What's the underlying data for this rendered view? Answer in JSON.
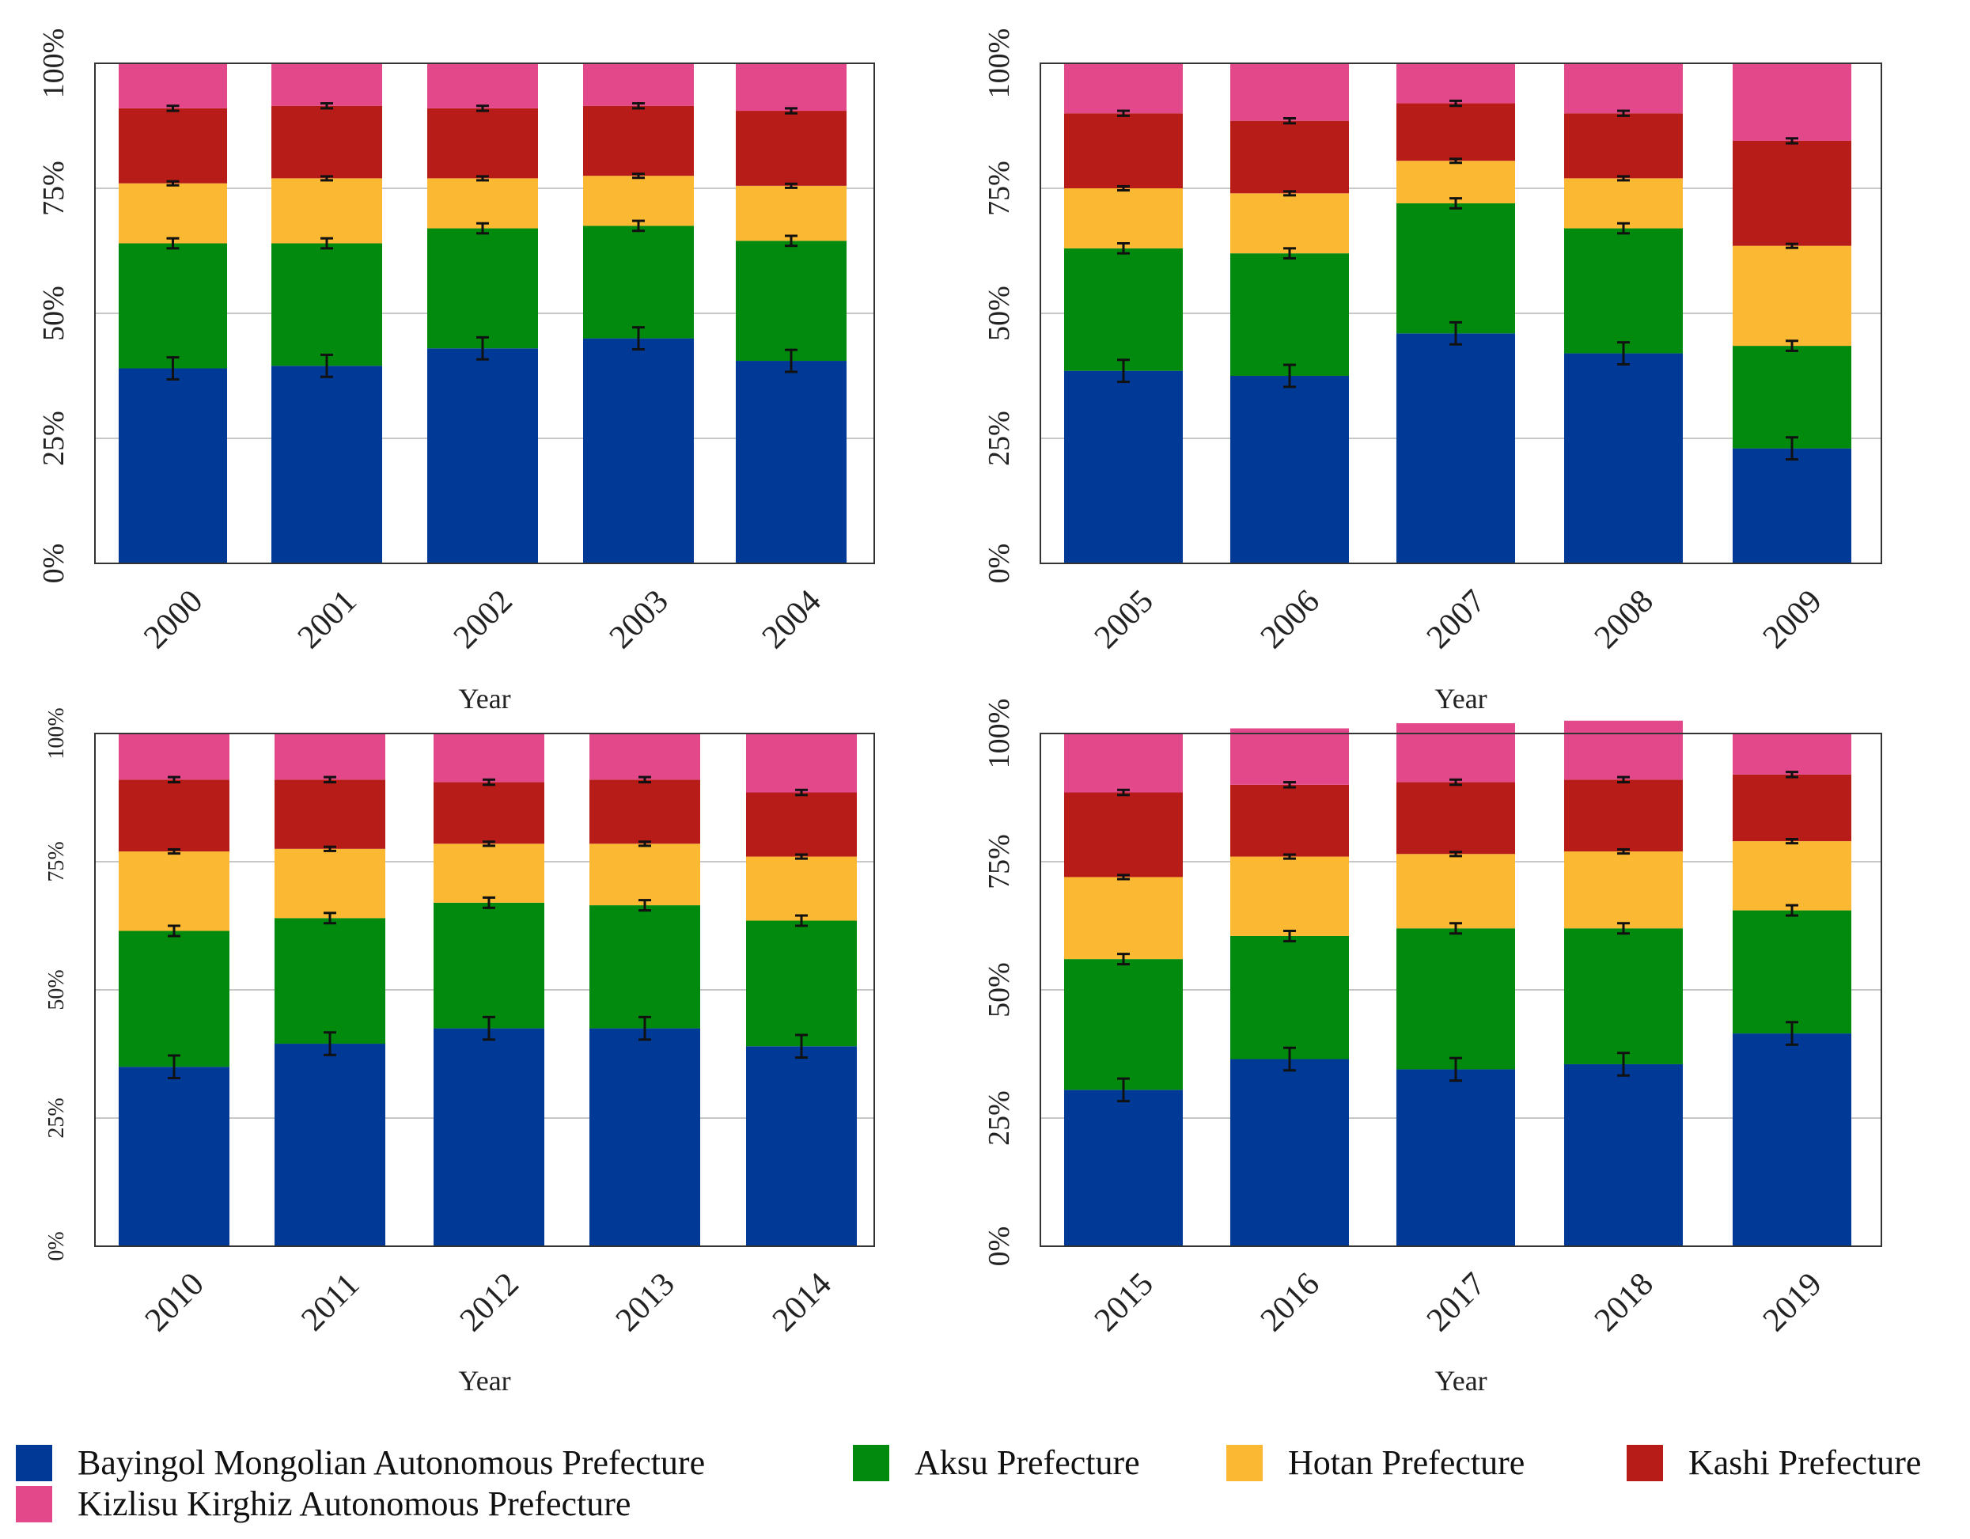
{
  "colors": {
    "Bayingol Mongolian Autonomous Prefecture": "#003a96",
    "Aksu Prefecture": "#028a0f",
    "Hotan Prefecture": "#fbb833",
    "Kashi Prefecture": "#b81c19",
    "Kizlisu Kirghiz Autonomous Prefecture": "#e2488a"
  },
  "legend": [
    "Bayingol Mongolian Autonomous Prefecture",
    "Aksu Prefecture",
    "Hotan Prefecture",
    "Kashi Prefecture",
    "Kizlisu Kirghiz Autonomous Prefecture"
  ],
  "chart_data": [
    {
      "type": "bar",
      "stacked": true,
      "xlabel": "Year",
      "ylabel": "",
      "ylim": [
        0,
        100
      ],
      "yticks": [
        "0%",
        "25%",
        "50%",
        "75%",
        "100%"
      ],
      "categories": [
        "2000",
        "2001",
        "2002",
        "2003",
        "2004"
      ],
      "series": [
        {
          "name": "Bayingol Mongolian Autonomous Prefecture",
          "values": [
            39,
            39.5,
            43,
            45,
            40.5
          ]
        },
        {
          "name": "Aksu Prefecture",
          "values": [
            25,
            24.5,
            24,
            22.5,
            24
          ]
        },
        {
          "name": "Hotan Prefecture",
          "values": [
            12,
            13,
            10,
            10,
            11
          ]
        },
        {
          "name": "Kashi Prefecture",
          "values": [
            15,
            14.5,
            14,
            14,
            15
          ]
        },
        {
          "name": "Kizlisu Kirghiz Autonomous Prefecture",
          "values": [
            9,
            8.5,
            9,
            8.5,
            9.5
          ]
        }
      ]
    },
    {
      "type": "bar",
      "stacked": true,
      "xlabel": "Year",
      "ylabel": "",
      "ylim": [
        0,
        100
      ],
      "yticks": [
        "0%",
        "25%",
        "50%",
        "75%",
        "100%"
      ],
      "categories": [
        "2005",
        "2006",
        "2007",
        "2008",
        "2009"
      ],
      "series": [
        {
          "name": "Bayingol Mongolian Autonomous Prefecture",
          "values": [
            38.5,
            37.5,
            46,
            42,
            23
          ]
        },
        {
          "name": "Aksu Prefecture",
          "values": [
            24.5,
            24.5,
            26,
            25,
            20.5
          ]
        },
        {
          "name": "Hotan Prefecture",
          "values": [
            12,
            12,
            8.5,
            10,
            20
          ]
        },
        {
          "name": "Kashi Prefecture",
          "values": [
            15,
            14.5,
            11.5,
            13,
            21
          ]
        },
        {
          "name": "Kizlisu Kirghiz Autonomous Prefecture",
          "values": [
            10,
            11.5,
            8,
            10,
            15.5
          ]
        }
      ]
    },
    {
      "type": "bar",
      "stacked": true,
      "xlabel": "Year",
      "ylabel": "",
      "ylim": [
        0,
        100
      ],
      "yticks": [
        "0%",
        "25%",
        "50%",
        "75%",
        "100%"
      ],
      "categories": [
        "2010",
        "2011",
        "2012",
        "2013",
        "2014"
      ],
      "series": [
        {
          "name": "Bayingol Mongolian Autonomous Prefecture",
          "values": [
            35,
            39.5,
            42.5,
            42.5,
            39
          ]
        },
        {
          "name": "Aksu Prefecture",
          "values": [
            26.5,
            24.5,
            24.5,
            24,
            24.5
          ]
        },
        {
          "name": "Hotan Prefecture",
          "values": [
            15.5,
            13.5,
            11.5,
            12,
            12.5
          ]
        },
        {
          "name": "Kashi Prefecture",
          "values": [
            14,
            13.5,
            12,
            12.5,
            12.5
          ]
        },
        {
          "name": "Kizlisu Kirghiz Autonomous Prefecture",
          "values": [
            9,
            9,
            9.5,
            9,
            11.5
          ]
        }
      ]
    },
    {
      "type": "bar",
      "stacked": true,
      "xlabel": "Year",
      "ylabel": "",
      "ylim": [
        0,
        100
      ],
      "yticks": [
        "0%",
        "25%",
        "50%",
        "75%",
        "100%"
      ],
      "categories": [
        "2015",
        "2016",
        "2017",
        "2018",
        "2019"
      ],
      "series": [
        {
          "name": "Bayingol Mongolian Autonomous Prefecture",
          "values": [
            30.5,
            36.5,
            34.5,
            35.5,
            41.5
          ]
        },
        {
          "name": "Aksu Prefecture",
          "values": [
            25.5,
            24,
            27.5,
            26.5,
            24
          ]
        },
        {
          "name": "Hotan Prefecture",
          "values": [
            16,
            15.5,
            14.5,
            15,
            13.5
          ]
        },
        {
          "name": "Kashi Prefecture",
          "values": [
            16.5,
            14,
            14,
            14,
            13
          ]
        },
        {
          "name": "Kizlisu Kirghiz Autonomous Prefecture",
          "values": [
            11.5,
            11,
            11.5,
            11.5,
            8
          ]
        }
      ]
    }
  ]
}
